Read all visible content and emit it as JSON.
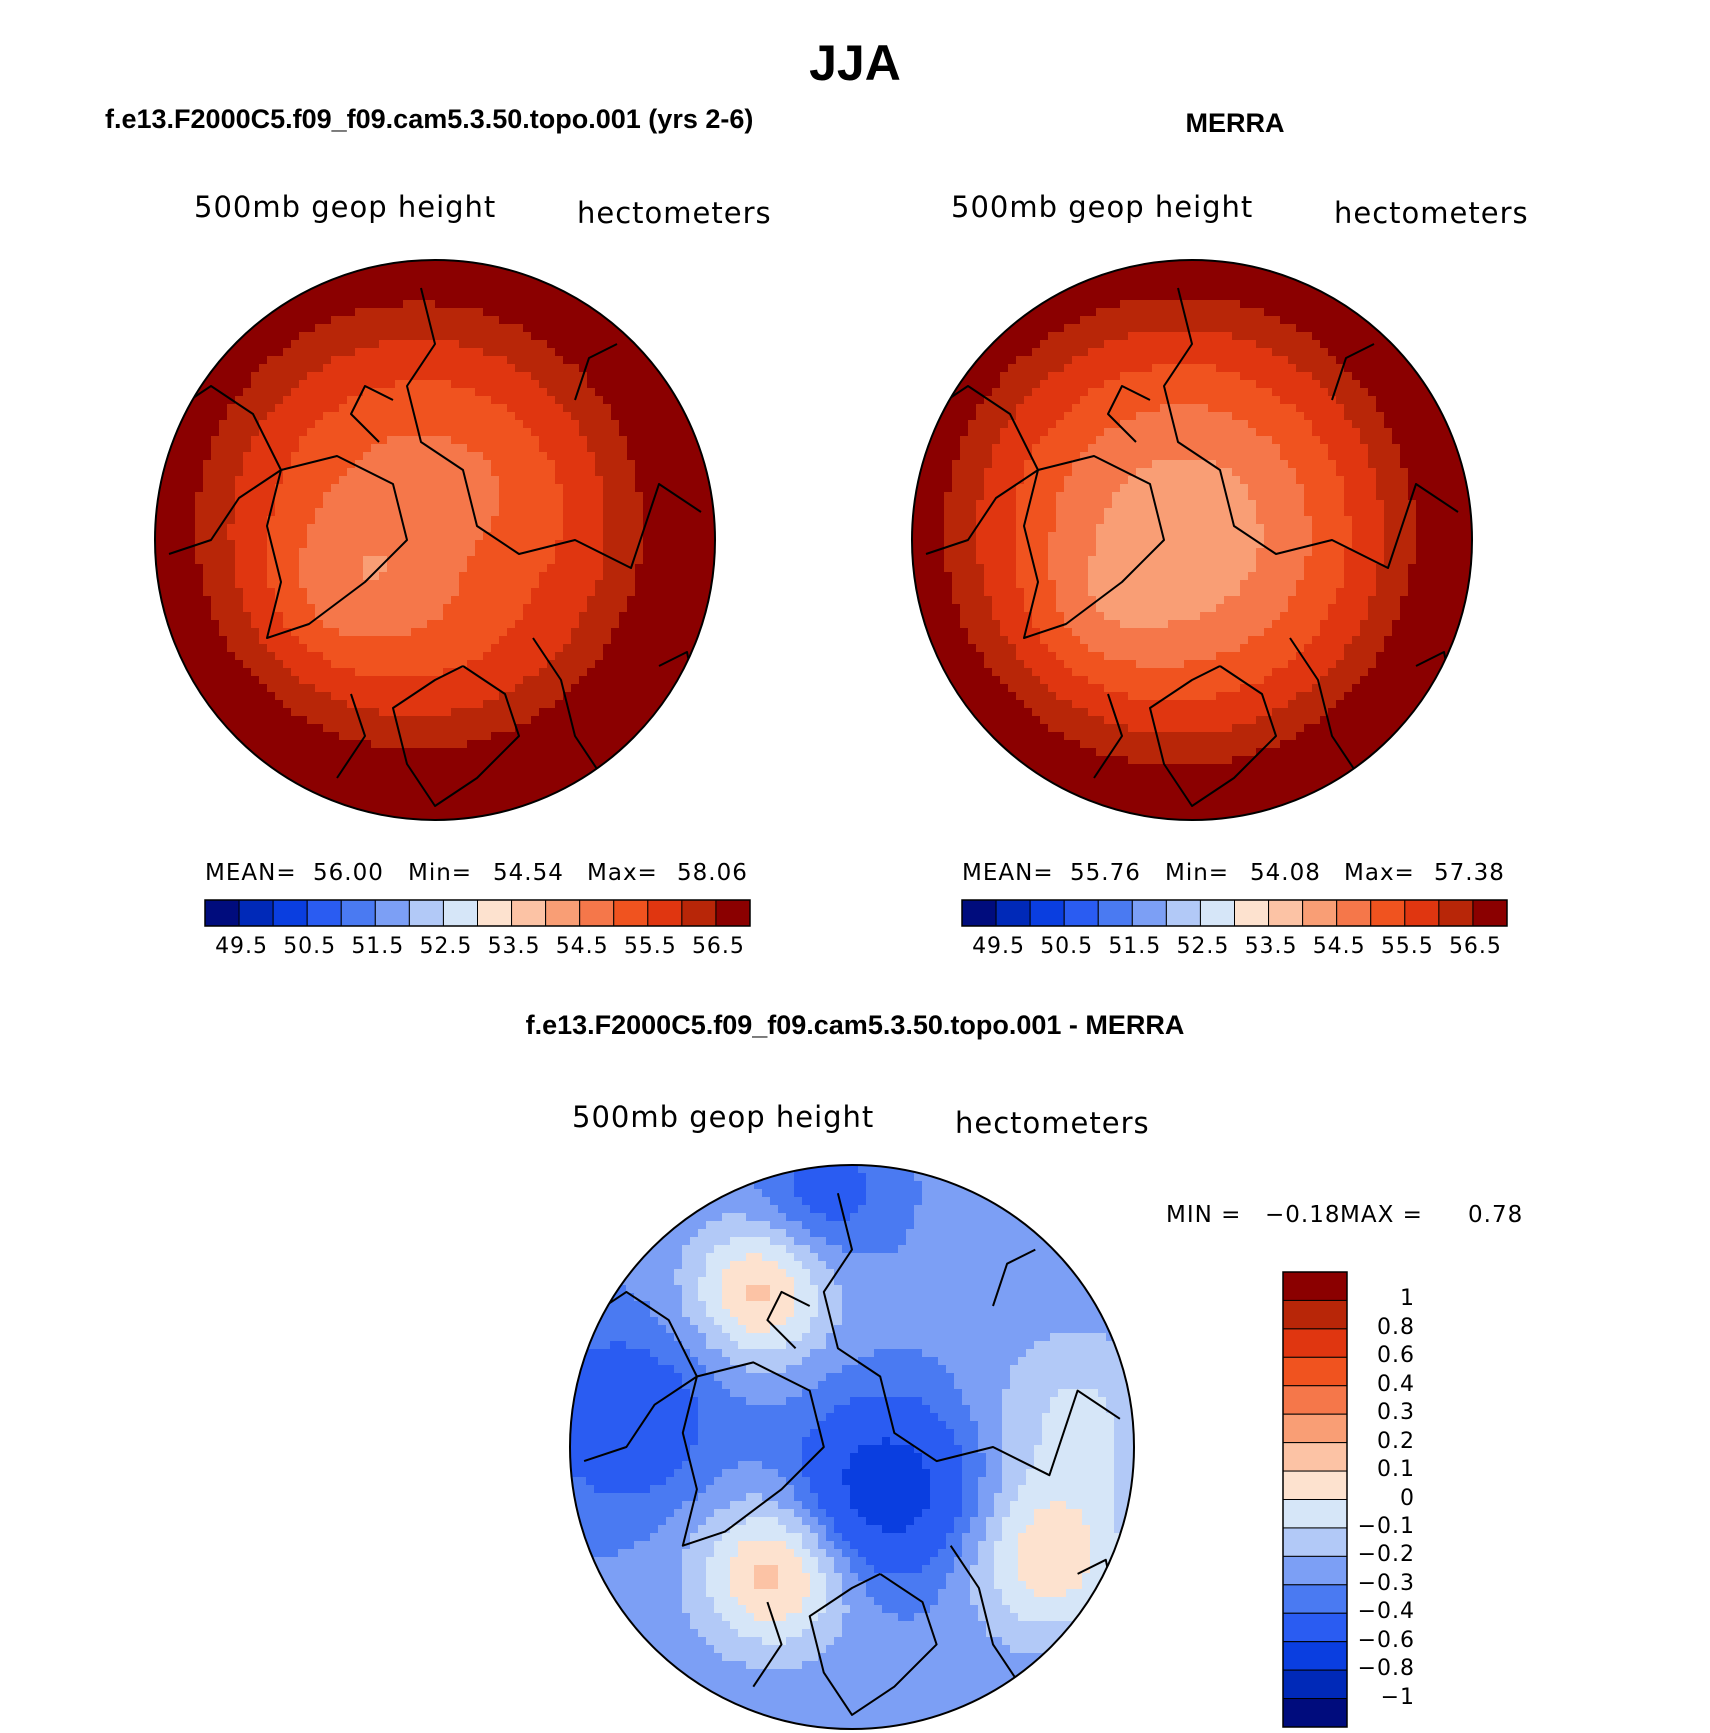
{
  "page": {
    "title": "JJA"
  },
  "panels": [
    {
      "title": "f.e13.F2000C5.f09_f09.cam5.3.50.topo.001 (yrs 2-6)",
      "variable": "500mb geop height",
      "units": "hectometers",
      "stats": {
        "mean_label": "MEAN=",
        "mean": "56.00",
        "min_label": "Min=",
        "min": "54.54",
        "max_label": "Max=",
        "max": "58.06"
      }
    },
    {
      "title": "MERRA",
      "variable": "500mb geop height",
      "units": "hectometers",
      "stats": {
        "mean_label": "MEAN=",
        "mean": "55.76",
        "min_label": "Min=",
        "min": "54.08",
        "max_label": "Max=",
        "max": "57.38"
      }
    },
    {
      "title": "f.e13.F2000C5.f09_f09.cam5.3.50.topo.001 - MERRA",
      "variable": "500mb geop height",
      "units": "hectometers",
      "stats": {
        "min_label": "MIN =",
        "min": "−0.18",
        "max_label": "MAX =",
        "max": "0.78"
      }
    }
  ],
  "chart_data": [
    {
      "type": "heatmap",
      "title": "f.e13.F2000C5.f09_f09.cam5.3.50.topo.001 (yrs 2-6)",
      "projection": "polar stereographic, Northern Hemisphere",
      "variable": "500mb geop height",
      "units": "hectometers",
      "mean": 56.0,
      "min": 54.54,
      "max": 58.06,
      "contour_levels": [
        49.5,
        50,
        50.5,
        51,
        51.5,
        52,
        52.5,
        53,
        53.5,
        54,
        54.5,
        55,
        55.5,
        56,
        56.5
      ],
      "colorbar_ticks": [
        "49.5",
        "50.5",
        "51.5",
        "52.5",
        "53.5",
        "54.5",
        "55.5",
        "56.5"
      ],
      "colors": [
        "#000c7d",
        "#0029b8",
        "#0a3ee0",
        "#2a5cf2",
        "#4a7af2",
        "#7c9ff5",
        "#b2c9f7",
        "#d6e6f8",
        "#fde2cf",
        "#fcc3a5",
        "#f99e75",
        "#f5774a",
        "#f0531f",
        "#e03610",
        "#b82608",
        "#8b0000"
      ]
    },
    {
      "type": "heatmap",
      "title": "MERRA",
      "projection": "polar stereographic, Northern Hemisphere",
      "variable": "500mb geop height",
      "units": "hectometers",
      "mean": 55.76,
      "min": 54.08,
      "max": 57.38,
      "contour_levels": [
        49.5,
        50,
        50.5,
        51,
        51.5,
        52,
        52.5,
        53,
        53.5,
        54,
        54.5,
        55,
        55.5,
        56,
        56.5
      ],
      "colorbar_ticks": [
        "49.5",
        "50.5",
        "51.5",
        "52.5",
        "53.5",
        "54.5",
        "55.5",
        "56.5"
      ],
      "colors": [
        "#000c7d",
        "#0029b8",
        "#0a3ee0",
        "#2a5cf2",
        "#4a7af2",
        "#7c9ff5",
        "#b2c9f7",
        "#d6e6f8",
        "#fde2cf",
        "#fcc3a5",
        "#f99e75",
        "#f5774a",
        "#f0531f",
        "#e03610",
        "#b82608",
        "#8b0000"
      ]
    },
    {
      "type": "heatmap",
      "title": "f.e13.F2000C5.f09_f09.cam5.3.50.topo.001 - MERRA",
      "projection": "polar stereographic, Northern Hemisphere",
      "variable": "500mb geop height",
      "units": "hectometers",
      "min": -0.18,
      "max": 0.78,
      "contour_levels": [
        -1,
        -0.8,
        -0.6,
        -0.4,
        -0.3,
        -0.2,
        -0.1,
        0,
        0.1,
        0.2,
        0.3,
        0.4,
        0.6,
        0.8,
        1
      ],
      "colorbar_ticks": [
        "1",
        "0.8",
        "0.6",
        "0.4",
        "0.3",
        "0.2",
        "0.1",
        "0",
        "−0.1",
        "−0.2",
        "−0.3",
        "−0.4",
        "−0.6",
        "−0.8",
        "−1"
      ],
      "colors": [
        "#8b0000",
        "#b82608",
        "#e03610",
        "#f0531f",
        "#f5774a",
        "#f99e75",
        "#fcc3a5",
        "#fde2cf",
        "#d6e6f8",
        "#b2c9f7",
        "#7c9ff5",
        "#4a7af2",
        "#2a5cf2",
        "#0a3ee0",
        "#0029b8",
        "#000c7d"
      ]
    }
  ]
}
